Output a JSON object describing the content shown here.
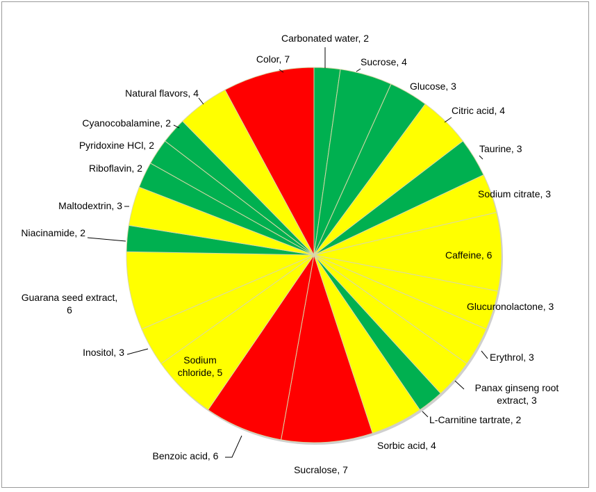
{
  "chart_data": {
    "type": "pie",
    "title": "",
    "slices": [
      {
        "label": "Carbonated water, 2",
        "value": 2,
        "color": "#00b050"
      },
      {
        "label": "Sucrose, 4",
        "value": 4,
        "color": "#00b050"
      },
      {
        "label": "Glucose, 3",
        "value": 3,
        "color": "#00b050"
      },
      {
        "label": "Citric acid, 4",
        "value": 4,
        "color": "#ffff00"
      },
      {
        "label": "Taurine, 3",
        "value": 3,
        "color": "#00b050"
      },
      {
        "label": "Sodium citrate, 3",
        "value": 3,
        "color": "#ffff00"
      },
      {
        "label": "Caffeine, 6",
        "value": 6,
        "color": "#ffff00"
      },
      {
        "label": "Glucuronolactone, 3",
        "value": 3,
        "color": "#ffff00"
      },
      {
        "label": "Erythrol, 3",
        "value": 3,
        "color": "#ffff00"
      },
      {
        "label": "Panax ginseng root extract, 3",
        "value": 3,
        "color": "#ffff00"
      },
      {
        "label": "L-Carnitine tartrate, 2",
        "value": 2,
        "color": "#00b050"
      },
      {
        "label": "Sorbic acid, 4",
        "value": 4,
        "color": "#ffff00"
      },
      {
        "label": "Sucralose, 7",
        "value": 7,
        "color": "#ff0000"
      },
      {
        "label": "Benzoic acid, 6",
        "value": 6,
        "color": "#ff0000"
      },
      {
        "label": "Sodium chloride, 5",
        "value": 5,
        "color": "#ffff00"
      },
      {
        "label": "Inositol, 3",
        "value": 3,
        "color": "#ffff00"
      },
      {
        "label": "Guarana seed extract, 6",
        "value": 6,
        "color": "#ffff00"
      },
      {
        "label": "Niacinamide, 2",
        "value": 2,
        "color": "#00b050"
      },
      {
        "label": "Maltodextrin, 3",
        "value": 3,
        "color": "#ffff00"
      },
      {
        "label": "Riboflavin, 2",
        "value": 2,
        "color": "#00b050"
      },
      {
        "label": "Pyridoxine HCl, 2",
        "value": 2,
        "color": "#00b050"
      },
      {
        "label": "Cyanocobalamine, 2",
        "value": 2,
        "color": "#00b050"
      },
      {
        "label": "Natural flavors, 4",
        "value": 4,
        "color": "#ffff00"
      },
      {
        "label": "Color, 7",
        "value": 7,
        "color": "#ff0000"
      }
    ]
  }
}
